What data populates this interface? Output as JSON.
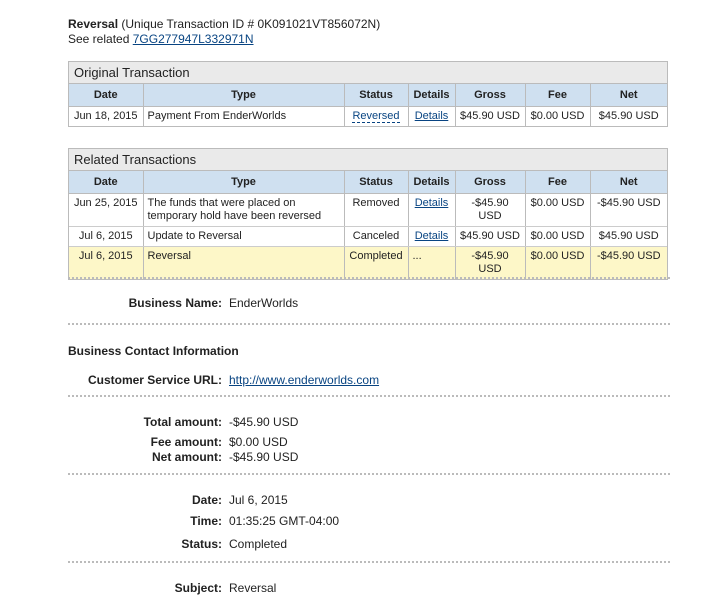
{
  "header": {
    "title": "Reversal",
    "id_text": "(Unique Transaction ID # 0K091021VT856072N)",
    "related_prefix": "See related",
    "related_link": "7GG277947L332971N"
  },
  "original": {
    "caption": "Original Transaction",
    "columns": [
      "Date",
      "Type",
      "Status",
      "Details",
      "Gross",
      "Fee",
      "Net"
    ],
    "rows": [
      {
        "date": "Jun 18, 2015",
        "type": "Payment From EnderWorlds",
        "status": "Reversed",
        "details": "Details",
        "gross": "$45.90 USD",
        "fee": "$0.00 USD",
        "net": "$45.90 USD"
      }
    ]
  },
  "related": {
    "caption": "Related Transactions",
    "columns": [
      "Date",
      "Type",
      "Status",
      "Details",
      "Gross",
      "Fee",
      "Net"
    ],
    "rows": [
      {
        "date": "Jun 25, 2015",
        "type": "The funds that were placed on temporary hold have been reversed",
        "status": "Removed",
        "details": "Details",
        "gross": "-$45.90 USD",
        "fee": "$0.00 USD",
        "net": "-$45.90 USD"
      },
      {
        "date": "Jul 6, 2015",
        "type": "Update to Reversal",
        "status": "Canceled",
        "details": "Details",
        "gross": "$45.90 USD",
        "fee": "$0.00 USD",
        "net": "$45.90 USD"
      },
      {
        "date": "Jul 6, 2015",
        "type": "Reversal",
        "status": "Completed",
        "details": "...",
        "gross": "-$45.90 USD",
        "fee": "$0.00 USD",
        "net": "-$45.90 USD"
      }
    ]
  },
  "business": {
    "name_label": "Business Name:",
    "name": "EnderWorlds"
  },
  "contact": {
    "heading": "Business Contact Information",
    "url_label": "Customer Service URL:",
    "url": "http://www.enderworlds.com"
  },
  "amounts": {
    "total_label": "Total amount:",
    "total": "-$45.90 USD",
    "fee_label": "Fee amount:",
    "fee": "$0.00 USD",
    "net_label": "Net amount:",
    "net": "-$45.90 USD"
  },
  "info": {
    "date_label": "Date:",
    "date": "Jul 6, 2015",
    "time_label": "Time:",
    "time": "01:35:25 GMT-04:00",
    "status_label": "Status:",
    "status": "Completed"
  },
  "subject": {
    "label": "Subject:",
    "value": "Reversal"
  },
  "colors": {
    "header_bg": "#cfe0f0",
    "highlight_bg": "#fdf7c8",
    "link": "#084482"
  }
}
